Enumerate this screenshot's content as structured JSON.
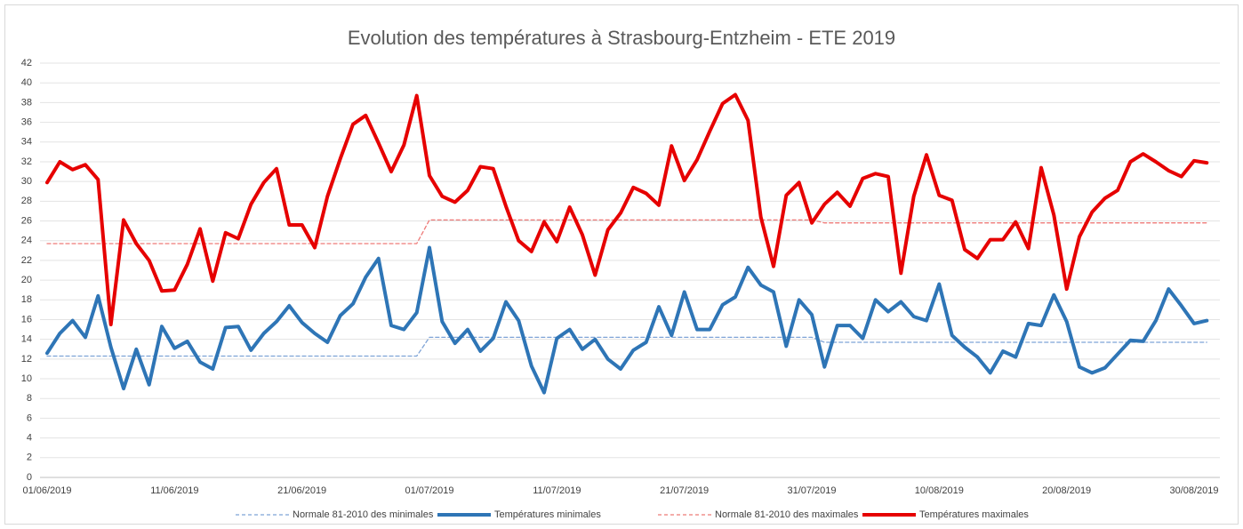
{
  "chart_data": {
    "type": "line",
    "title": "Evolution des températures à Strasbourg-Entzheim  - ETE 2019",
    "categories": [
      "01/06/2019",
      null,
      null,
      null,
      null,
      null,
      null,
      null,
      null,
      null,
      "11/06/2019",
      null,
      null,
      null,
      null,
      null,
      null,
      null,
      null,
      null,
      "21/06/2019",
      null,
      null,
      null,
      null,
      null,
      null,
      null,
      null,
      null,
      "01/07/2019",
      null,
      null,
      null,
      null,
      null,
      null,
      null,
      null,
      null,
      "11/07/2019",
      null,
      null,
      null,
      null,
      null,
      null,
      null,
      null,
      null,
      "21/07/2019",
      null,
      null,
      null,
      null,
      null,
      null,
      null,
      null,
      null,
      "31/07/2019",
      null,
      null,
      null,
      null,
      null,
      null,
      null,
      null,
      null,
      "10/08/2019",
      null,
      null,
      null,
      null,
      null,
      null,
      null,
      null,
      null,
      "20/08/2019",
      null,
      null,
      null,
      null,
      null,
      null,
      null,
      null,
      null,
      "30/08/2019",
      null
    ],
    "series": [
      {
        "name": "Normale 81-2010 des minimales",
        "color": "#7ea3d6",
        "dashed": true,
        "values": [
          12.3,
          12.3,
          12.3,
          12.3,
          12.3,
          12.3,
          12.3,
          12.3,
          12.3,
          12.3,
          12.3,
          12.3,
          12.3,
          12.3,
          12.3,
          12.3,
          12.3,
          12.3,
          12.3,
          12.3,
          12.3,
          12.3,
          12.3,
          12.3,
          12.3,
          12.3,
          12.3,
          12.3,
          12.3,
          12.3,
          14.2,
          14.2,
          14.2,
          14.2,
          14.2,
          14.2,
          14.2,
          14.2,
          14.2,
          14.2,
          14.2,
          14.2,
          14.2,
          14.2,
          14.2,
          14.2,
          14.2,
          14.2,
          14.2,
          14.2,
          14.2,
          14.2,
          14.2,
          14.2,
          14.2,
          14.2,
          14.2,
          14.2,
          14.2,
          14.2,
          14.2,
          13.7,
          13.7,
          13.7,
          13.7,
          13.7,
          13.7,
          13.7,
          13.7,
          13.7,
          13.7,
          13.7,
          13.7,
          13.7,
          13.7,
          13.7,
          13.7,
          13.7,
          13.7,
          13.7,
          13.7,
          13.7,
          13.7,
          13.7,
          13.7,
          13.7,
          13.7,
          13.7,
          13.7,
          13.7,
          13.7,
          13.7
        ]
      },
      {
        "name": "Températures minimales",
        "color": "#2e75b6",
        "dashed": false,
        "values": [
          12.6,
          14.6,
          15.9,
          14.2,
          18.4,
          13.2,
          9,
          13,
          9.4,
          15.3,
          13.1,
          13.8,
          11.7,
          11,
          15.2,
          15.3,
          12.9,
          14.6,
          15.8,
          17.4,
          15.7,
          14.6,
          13.7,
          16.4,
          17.6,
          20.3,
          22.2,
          15.4,
          15,
          16.7,
          23.3,
          15.8,
          13.6,
          15,
          12.8,
          14.1,
          17.8,
          15.9,
          11.3,
          8.6,
          14.1,
          15,
          13,
          14,
          12,
          11,
          12.9,
          13.7,
          17.3,
          14.4,
          18.8,
          15,
          15,
          17.5,
          18.3,
          21.3,
          19.5,
          18.8,
          13.3,
          18,
          16.5,
          11.2,
          15.4,
          15.4,
          14.1,
          18,
          16.8,
          17.8,
          16.3,
          15.9,
          19.6,
          14.4,
          13.2,
          12.2,
          10.6,
          12.8,
          12.2,
          15.6,
          15.4,
          18.5,
          15.8,
          11.2,
          10.6,
          11.1,
          12.5,
          13.9,
          13.8,
          15.9,
          19.1,
          17.4,
          15.6,
          15.9
        ]
      },
      {
        "name": "Normale 81-2010 des maximales",
        "color": "#ee7a78",
        "dashed": true,
        "values": [
          23.7,
          23.7,
          23.7,
          23.7,
          23.7,
          23.7,
          23.7,
          23.7,
          23.7,
          23.7,
          23.7,
          23.7,
          23.7,
          23.7,
          23.7,
          23.7,
          23.7,
          23.7,
          23.7,
          23.7,
          23.7,
          23.7,
          23.7,
          23.7,
          23.7,
          23.7,
          23.7,
          23.7,
          23.7,
          23.7,
          26.1,
          26.1,
          26.1,
          26.1,
          26.1,
          26.1,
          26.1,
          26.1,
          26.1,
          26.1,
          26.1,
          26.1,
          26.1,
          26.1,
          26.1,
          26.1,
          26.1,
          26.1,
          26.1,
          26.1,
          26.1,
          26.1,
          26.1,
          26.1,
          26.1,
          26.1,
          26.1,
          26.1,
          26.1,
          26.1,
          26.1,
          25.8,
          25.8,
          25.8,
          25.8,
          25.8,
          25.8,
          25.8,
          25.8,
          25.8,
          25.8,
          25.8,
          25.8,
          25.8,
          25.8,
          25.8,
          25.8,
          25.8,
          25.8,
          25.8,
          25.8,
          25.8,
          25.8,
          25.8,
          25.8,
          25.8,
          25.8,
          25.8,
          25.8,
          25.8,
          25.8,
          25.8
        ]
      },
      {
        "name": "Températures maximales",
        "color": "#e60000",
        "dashed": false,
        "values": [
          29.9,
          32,
          31.2,
          31.7,
          30.2,
          15.5,
          26.1,
          23.7,
          22,
          18.9,
          19,
          21.6,
          25.2,
          19.9,
          24.8,
          24.2,
          27.7,
          29.9,
          31.3,
          25.6,
          25.6,
          23.3,
          28.5,
          32.3,
          35.8,
          36.7,
          33.9,
          31,
          33.7,
          38.7,
          30.6,
          28.5,
          27.9,
          29.1,
          31.5,
          31.3,
          27.5,
          24,
          22.9,
          25.9,
          23.9,
          27.4,
          24.6,
          20.5,
          25.1,
          26.8,
          29.4,
          28.8,
          27.6,
          33.6,
          30.1,
          32.2,
          35.1,
          37.9,
          38.8,
          36.2,
          26.4,
          21.4,
          28.6,
          29.9,
          25.8,
          27.7,
          28.9,
          27.5,
          30.3,
          30.8,
          30.5,
          20.7,
          28.5,
          32.7,
          28.6,
          28.1,
          23.1,
          22.2,
          24.1,
          24.1,
          25.9,
          23.2,
          31.4,
          26.6,
          19.1,
          24.4,
          26.9,
          28.3,
          29.1,
          32,
          32.8,
          32,
          31.1,
          30.5,
          32.1,
          31.9
        ]
      }
    ],
    "ylim": [
      0,
      42
    ],
    "yticks": [
      0,
      2,
      4,
      6,
      8,
      10,
      12,
      14,
      16,
      18,
      20,
      22,
      24,
      26,
      28,
      30,
      32,
      34,
      36,
      38,
      40,
      42
    ],
    "grid": true,
    "legend": "bottom"
  }
}
